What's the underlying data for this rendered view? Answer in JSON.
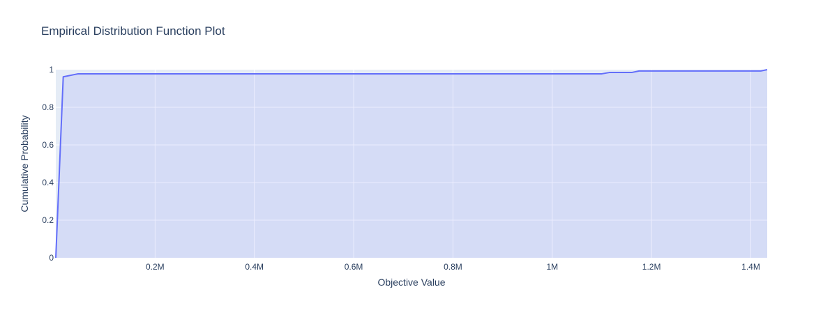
{
  "chart_data": {
    "type": "line",
    "title": "Empirical Distribution Function Plot",
    "xlabel": "Objective Value",
    "ylabel": "Cumulative Probability",
    "xlim": [
      0,
      1433000
    ],
    "ylim": [
      0,
      1
    ],
    "grid": true,
    "x_ticks": [
      {
        "value": 200000,
        "label": "0.2M"
      },
      {
        "value": 400000,
        "label": "0.4M"
      },
      {
        "value": 600000,
        "label": "0.6M"
      },
      {
        "value": 800000,
        "label": "0.8M"
      },
      {
        "value": 1000000,
        "label": "1M"
      },
      {
        "value": 1200000,
        "label": "1.2M"
      },
      {
        "value": 1400000,
        "label": "1.4M"
      }
    ],
    "y_ticks": [
      {
        "value": 0,
        "label": "0"
      },
      {
        "value": 0.2,
        "label": "0.2"
      },
      {
        "value": 0.4,
        "label": "0.4"
      },
      {
        "value": 0.6,
        "label": "0.6"
      },
      {
        "value": 0.8,
        "label": "0.8"
      },
      {
        "value": 1,
        "label": "1"
      }
    ],
    "series": [
      {
        "color": "#636efa",
        "fill": "tozeroy",
        "points": [
          [
            0,
            0
          ],
          [
            15000,
            0.962
          ],
          [
            45000,
            0.978
          ],
          [
            1100000,
            0.978
          ],
          [
            1115000,
            0.985
          ],
          [
            1160000,
            0.985
          ],
          [
            1175000,
            0.993
          ],
          [
            1420000,
            0.993
          ],
          [
            1433000,
            1.0
          ]
        ]
      }
    ]
  }
}
